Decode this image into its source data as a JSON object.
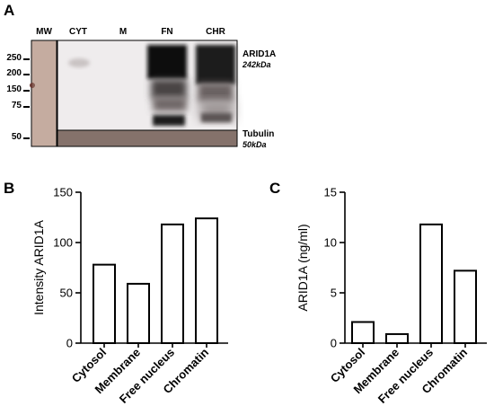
{
  "panels": {
    "a": "A",
    "b": "B",
    "c": "C"
  },
  "blot": {
    "lanes": [
      "MW",
      "CYT",
      "M",
      "FN",
      "CHR"
    ],
    "mw_markers": [
      "250",
      "200",
      "150",
      "75",
      "50"
    ],
    "bands": {
      "arid1a_label": "ARID1A",
      "arid1a_kda": "242kDa",
      "tubulin_label": "Tubulin",
      "tubulin_kda": "50kDa"
    },
    "colors": {
      "membrane": "#efeced",
      "tubulin_strip": "#8d7b74",
      "mw_lane": "#cdb6ab"
    }
  },
  "chart_data": [
    {
      "type": "bar",
      "panel": "B",
      "categories": [
        "Cytosol",
        "Membrane",
        "Free nucleus",
        "Chromatin"
      ],
      "values": [
        78,
        59,
        118,
        124
      ],
      "title": "",
      "xlabel": "",
      "ylabel": "Intensity ARID1A",
      "ylim": [
        0,
        150
      ],
      "yticks": [
        "0",
        "50",
        "100",
        "150"
      ],
      "bar_fill": "#ffffff",
      "bar_stroke": "#000000",
      "grid": false
    },
    {
      "type": "bar",
      "panel": "C",
      "categories": [
        "Cytosol",
        "Membrane",
        "Free nucleus",
        "Chromatin"
      ],
      "values": [
        2.1,
        0.9,
        11.8,
        7.2
      ],
      "title": "",
      "xlabel": "",
      "ylabel": "ARID1A (ng/ml)",
      "ylim": [
        0,
        15
      ],
      "yticks": [
        "0",
        "5",
        "10",
        "15"
      ],
      "bar_fill": "#ffffff",
      "bar_stroke": "#000000",
      "grid": false
    }
  ]
}
